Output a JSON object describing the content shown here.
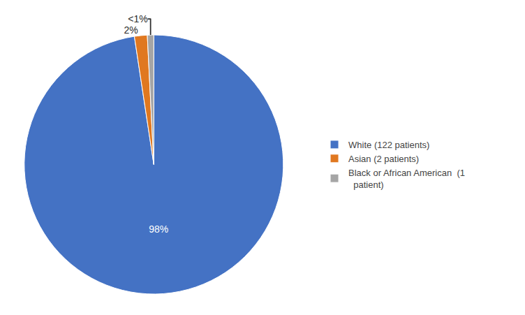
{
  "chart_data": {
    "type": "pie",
    "categories": [
      "White (122 patients)",
      "Asian (2 patients)",
      "Black or African American  (1\n  patient)"
    ],
    "values": [
      97.6,
      1.6,
      0.8
    ],
    "value_labels": [
      "98%",
      "2%",
      "<1%"
    ],
    "colors": [
      "#4472C4",
      "#E07820",
      "#A5A5A5"
    ],
    "data_labels": true,
    "legend": "right"
  }
}
